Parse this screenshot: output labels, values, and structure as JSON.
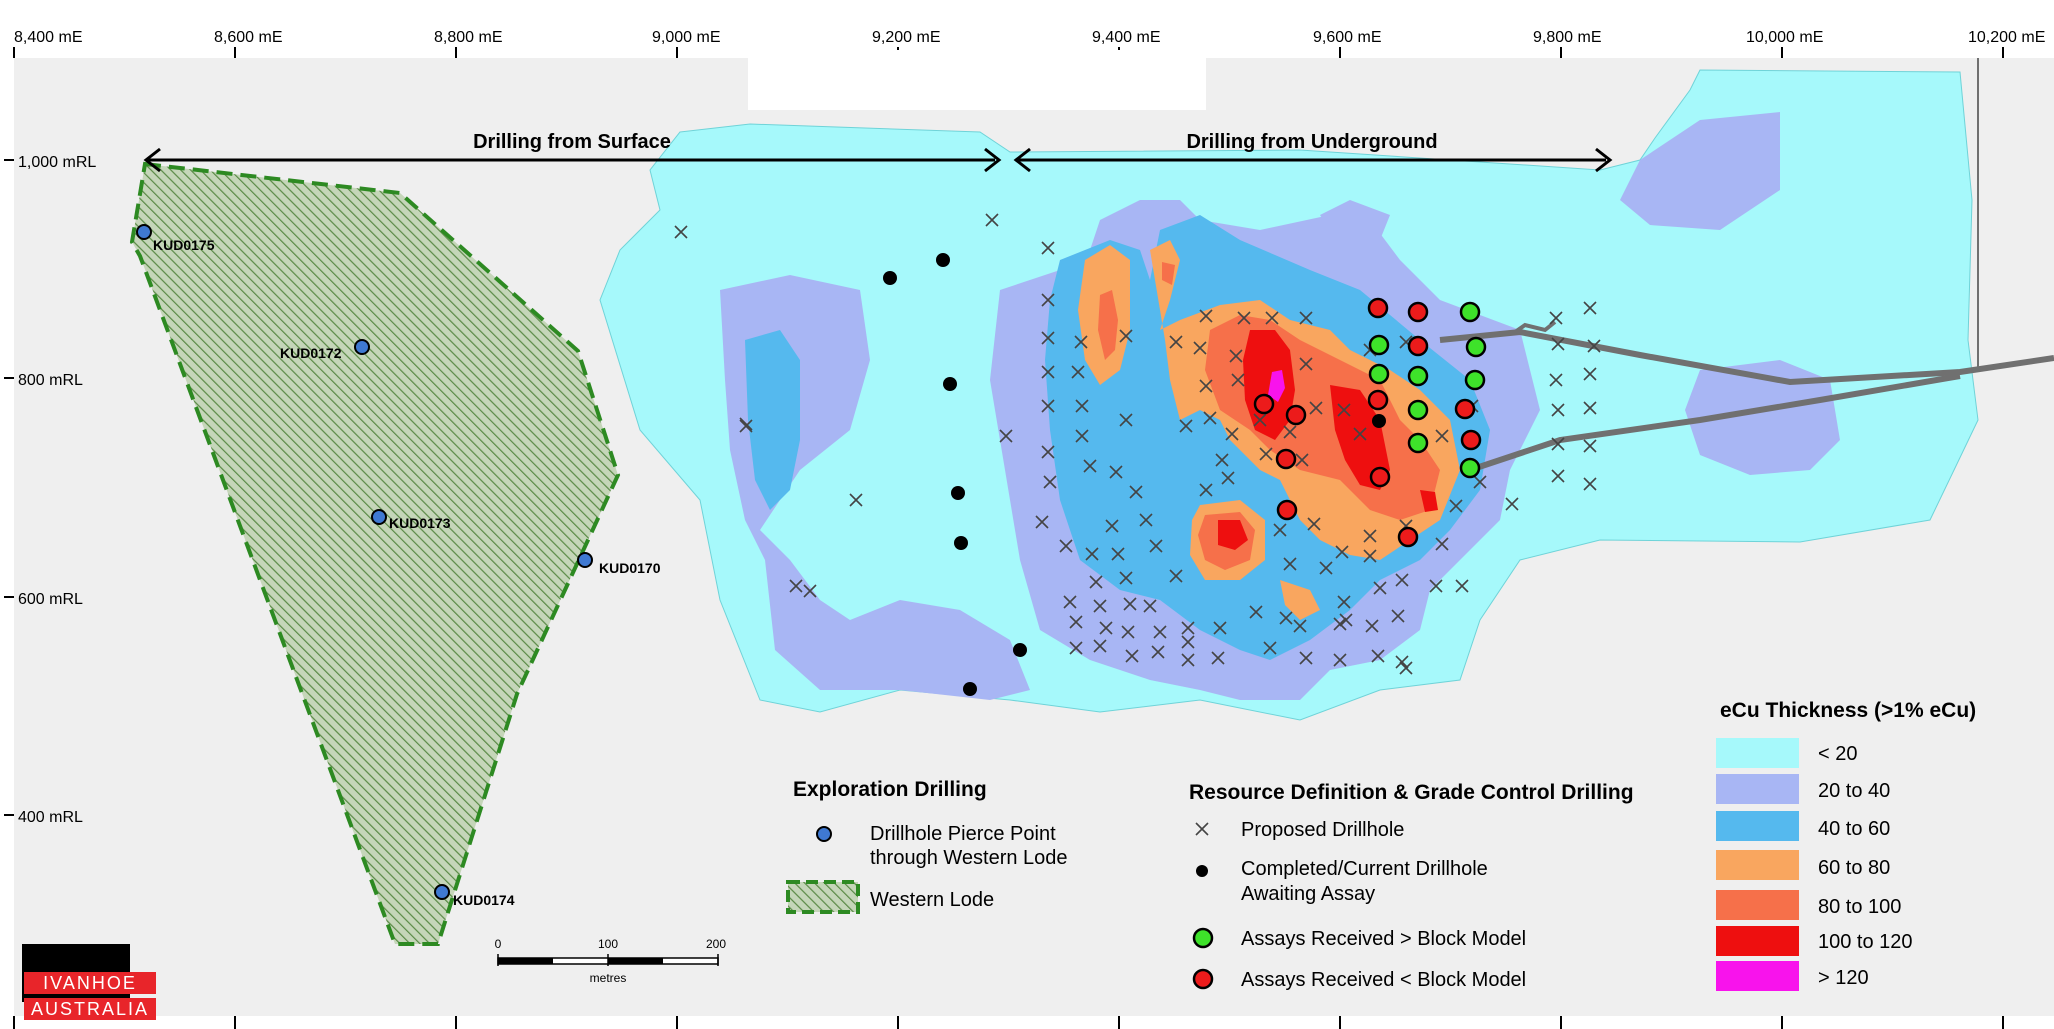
{
  "axes": {
    "easting_ticks": [
      "8,400 mE",
      "8,600 mE",
      "8,800 mE",
      "9,000 mE",
      "9,200 mE",
      "9,400 mE",
      "9,600 mE",
      "9,800 mE",
      "10,000 mE",
      "10,200 mE"
    ],
    "elevation_ticks": [
      "1,000 mRL",
      "800 mRL",
      "600 mRL",
      "400 mRL"
    ]
  },
  "annotations": {
    "drilling_surface": "Drilling from Surface",
    "drilling_underground": "Drilling from Underground"
  },
  "drillholes": [
    {
      "id": "KUD0175",
      "e": 8512,
      "rl": 934
    },
    {
      "id": "KUD0172",
      "e": 8703,
      "rl": 828
    },
    {
      "id": "KUD0173",
      "e": 8718,
      "rl": 671
    },
    {
      "id": "KUD0170",
      "e": 8910,
      "rl": 632
    },
    {
      "id": "KUD0174",
      "e": 8780,
      "rl": 318
    }
  ],
  "legend": {
    "exploration": {
      "title": "Exploration Drilling",
      "pierce_point": [
        "Drillhole Pierce Point",
        "through Western Lode"
      ],
      "western_lode": "Western Lode"
    },
    "resource": {
      "title": "Resource Definition & Grade Control Drilling",
      "proposed": "Proposed Drillhole",
      "completed": [
        "Completed/Current Drillhole",
        "Awaiting Assay"
      ],
      "above": "Assays Received > Block Model",
      "below": "Assays Received < Block Model"
    },
    "thickness": {
      "title": "eCu Thickness (>1% eCu)",
      "classes": [
        {
          "label": "< 20",
          "color": "#a6f9fb"
        },
        {
          "label": "20 to 40",
          "color": "#a8b6f4"
        },
        {
          "label": "40 to 60",
          "color": "#55b9ee"
        },
        {
          "label": "60 to 80",
          "color": "#f9a65f"
        },
        {
          "label": "80 to 100",
          "color": "#f6704a"
        },
        {
          "label": "100 to 120",
          "color": "#ee0f0f"
        },
        {
          "label": "> 120",
          "color": "#f813ec"
        }
      ]
    }
  },
  "scale_bar": {
    "ticks": [
      "0",
      "100",
      "200"
    ],
    "unit": "metres"
  },
  "logo": {
    "line1": "IVANHOE",
    "line2": "AUSTRALIA"
  },
  "colors": {
    "map_background": "#efefef",
    "western_lode_fill": "#9bb78a",
    "western_lode_border": "#2d8a22",
    "pierce_point": "#3f79d2",
    "assay_above": "#3ee22a",
    "assay_below": "#ec1b1b",
    "workings": "#707070"
  }
}
